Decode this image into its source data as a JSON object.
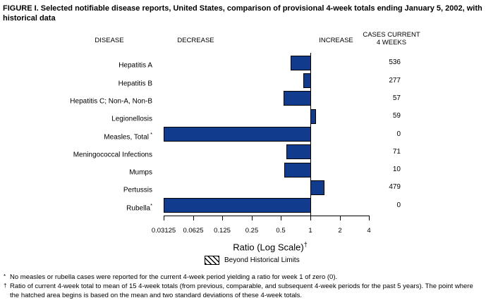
{
  "title": "FIGURE I. Selected notifiable disease reports, United States, comparison of provisional 4-week totals ending January 5, 2002, with historical data",
  "headers": {
    "disease": "DISEASE",
    "decrease": "DECREASE",
    "increase": "INCREASE",
    "cases_line1": "CASES CURRENT",
    "cases_line2": "4 WEEKS"
  },
  "axis": {
    "label": "Ratio (Log Scale)",
    "label_sup": "†",
    "ticks": [
      "0.03125",
      "0.0625",
      "0.125",
      "0.25",
      "0.5",
      "1",
      "2",
      "4"
    ]
  },
  "legend": {
    "label": "Beyond Historical Limits"
  },
  "footnotes": [
    {
      "marker": "*",
      "text": "No measles or rubella cases were reported for the current 4-week period yielding a ratio for week 1 of zero (0)."
    },
    {
      "marker": "†",
      "text": "Ratio of current 4-week total to mean of 15 4-week totals (from previous, comparable, and subsequent 4-week periods for the past 5 years). The point where the hatched area begins is based on the mean and two standard deviations of these 4-week totals."
    }
  ],
  "colors": {
    "bar_fill": "#113C8E",
    "text": "#000000",
    "background": "#FFFFFF"
  },
  "chart_data": {
    "type": "bar",
    "orientation": "horizontal",
    "scale": "log",
    "baseline_ratio": 1,
    "xlim": [
      0.03125,
      4
    ],
    "xlabel": "Ratio (Log Scale)",
    "legend": [
      "Beyond Historical Limits"
    ],
    "zero_ratio_bar_extends_to_axis_min": true,
    "rows": [
      {
        "disease": "Hepatitis A",
        "sup": "",
        "cases": 536,
        "ratio": 0.63
      },
      {
        "disease": "Hepatitis B",
        "sup": "",
        "cases": 277,
        "ratio": 0.85
      },
      {
        "disease": "Hepatitis C; Non-A, Non-B",
        "sup": "",
        "cases": 57,
        "ratio": 0.53
      },
      {
        "disease": "Legionellosis",
        "sup": "",
        "cases": 59,
        "ratio": 1.14
      },
      {
        "disease": "Measles, Total",
        "sup": " *",
        "cases": 0,
        "ratio": 0
      },
      {
        "disease": "Meningococcal Infections",
        "sup": "",
        "cases": 71,
        "ratio": 0.57
      },
      {
        "disease": "Mumps",
        "sup": "",
        "cases": 10,
        "ratio": 0.54
      },
      {
        "disease": "Pertussis",
        "sup": "",
        "cases": 479,
        "ratio": 1.4
      },
      {
        "disease": "Rubella",
        "sup": "*",
        "cases": 0,
        "ratio": 0
      }
    ]
  }
}
